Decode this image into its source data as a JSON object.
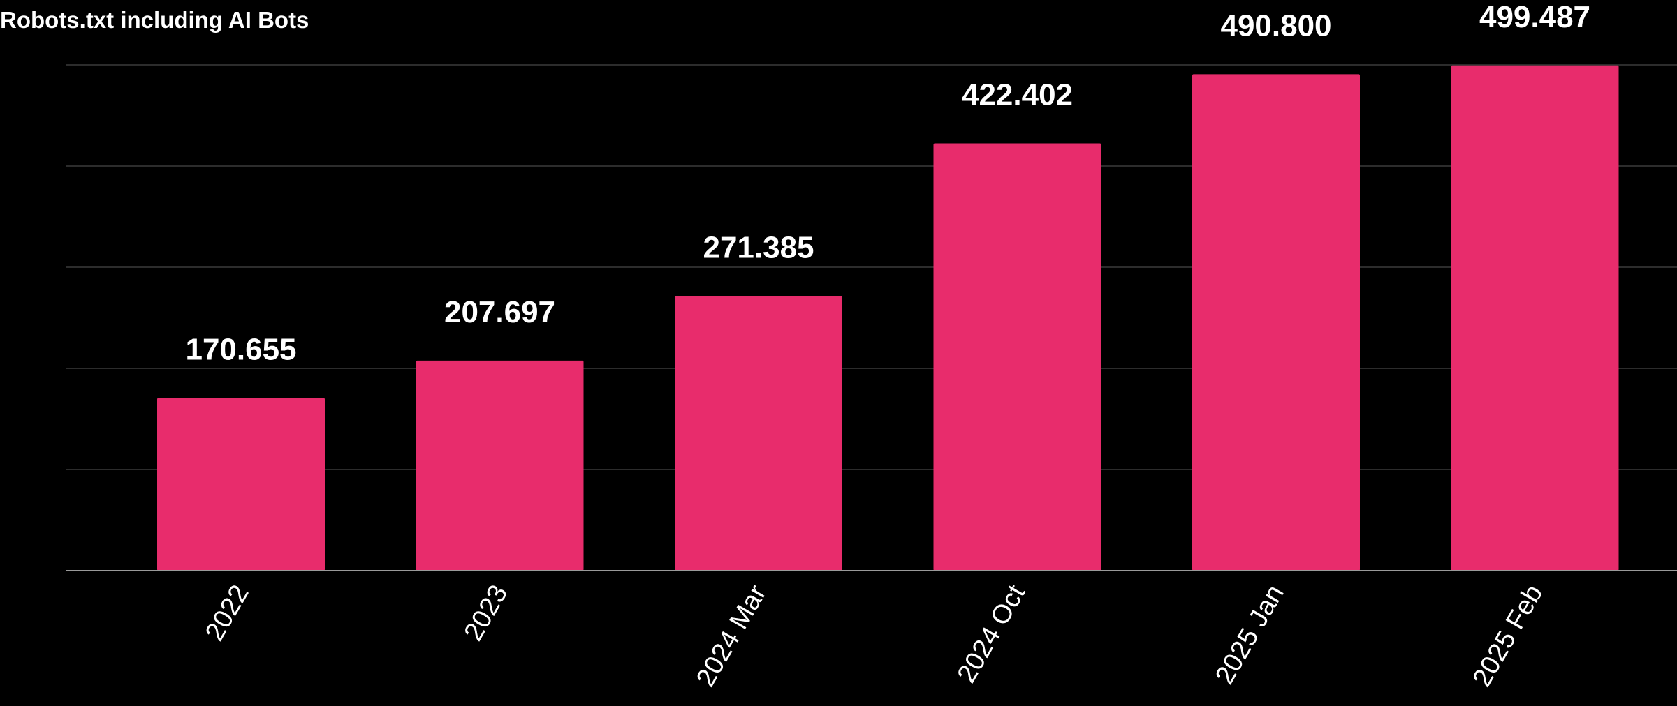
{
  "chart_data": {
    "type": "bar",
    "title": "Robots.txt including AI Bots",
    "xlabel": "",
    "ylabel": "",
    "categories": [
      "2022",
      "2023",
      "2024 Mar",
      "2024 Oct",
      "2025 Jan",
      "2025 Feb"
    ],
    "values": [
      170.655,
      207.697,
      271.385,
      422.402,
      490.8,
      499.487
    ],
    "value_labels": [
      "170.655",
      "207.697",
      "271.385",
      "422.402",
      "490.800",
      "499.487"
    ],
    "ylim": [
      0,
      500
    ],
    "grid": true,
    "legend": "none",
    "colors": {
      "background": "#000000",
      "bar": "#E82C6C",
      "text": "#FFFFFF",
      "grid": "#3a3a3a",
      "baseline": "#9a9a9a"
    }
  }
}
